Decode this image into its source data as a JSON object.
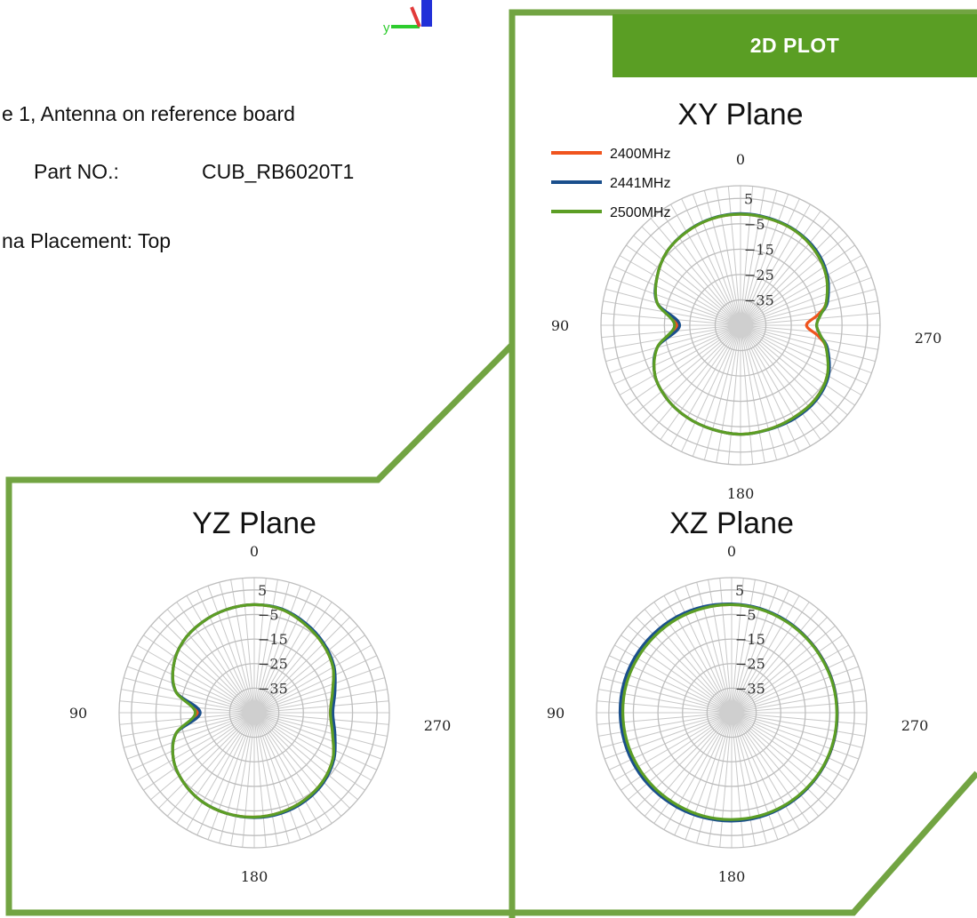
{
  "info": {
    "line1": "e 1, Antenna on reference board",
    "part_label": "Part NO.:",
    "part_value": "CUB_RB6020T1",
    "placement": "na Placement:  Top"
  },
  "axis_label": "y",
  "banner": {
    "label": "2D PLOT",
    "color": "#5a9e24"
  },
  "frame_color": "#72a442",
  "chart_data": [
    {
      "type": "polar-line",
      "title": "XY Plane",
      "angle_labels": [
        "0",
        "90",
        "180",
        "270"
      ],
      "angle_direction": "counterclockwise",
      "r_ticks": [
        -35,
        -25,
        -15,
        -5,
        5
      ],
      "r_range": [
        -45,
        10
      ],
      "legend": true,
      "series": [
        {
          "name": "2400MHz",
          "color": "#f0541e",
          "angles": [
            0,
            15,
            30,
            45,
            60,
            75,
            90,
            105,
            120,
            135,
            150,
            165,
            180,
            195,
            210,
            225,
            240,
            255,
            262,
            270,
            278,
            285,
            300,
            315,
            330,
            345,
            360
          ],
          "values": [
            -1.2,
            -1.5,
            -2.5,
            -4,
            -7,
            -11,
            -20,
            -11,
            -6,
            -4,
            -3,
            -2.5,
            -2,
            -2.5,
            -3,
            -3.5,
            -5.5,
            -10,
            -14,
            -19,
            -14,
            -10,
            -6,
            -3.5,
            -2,
            -1.5,
            -1.2
          ]
        },
        {
          "name": "2441MHz",
          "color": "#1a4f8c",
          "angles": [
            0,
            15,
            30,
            45,
            60,
            75,
            90,
            105,
            120,
            135,
            150,
            165,
            180,
            195,
            210,
            225,
            240,
            255,
            262,
            270,
            278,
            285,
            300,
            315,
            330,
            345,
            360
          ],
          "values": [
            -1,
            -1.4,
            -2.4,
            -4,
            -7,
            -11,
            -21,
            -11,
            -6,
            -4,
            -3,
            -2.5,
            -2,
            -2.4,
            -2.5,
            -3,
            -5,
            -9.5,
            -13,
            -15,
            -13,
            -9.5,
            -5.5,
            -3,
            -1.8,
            -1.3,
            -1
          ]
        },
        {
          "name": "2500MHz",
          "color": "#5c9e25",
          "angles": [
            0,
            15,
            30,
            45,
            60,
            75,
            90,
            105,
            120,
            135,
            150,
            165,
            180,
            195,
            210,
            225,
            240,
            255,
            262,
            270,
            278,
            285,
            300,
            315,
            330,
            345,
            360
          ],
          "values": [
            -1.2,
            -1.5,
            -2.5,
            -4,
            -7,
            -11,
            -19,
            -11,
            -6,
            -4,
            -3,
            -2.5,
            -2,
            -2.5,
            -3,
            -3.5,
            -5.5,
            -10,
            -13,
            -15,
            -13,
            -10,
            -6,
            -3.5,
            -2,
            -1.5,
            -1.2
          ]
        }
      ]
    },
    {
      "type": "polar-line",
      "title": "YZ Plane",
      "angle_labels": [
        "0",
        "90",
        "180",
        "270"
      ],
      "angle_direction": "counterclockwise",
      "r_ticks": [
        -35,
        -25,
        -15,
        -5,
        5
      ],
      "r_range": [
        -45,
        10
      ],
      "legend": false,
      "series": [
        {
          "name": "2400MHz",
          "color": "#f0541e",
          "angles": [
            0,
            15,
            30,
            45,
            60,
            75,
            90,
            105,
            120,
            135,
            150,
            165,
            180,
            195,
            210,
            225,
            240,
            255,
            270,
            285,
            300,
            315,
            330,
            345,
            360
          ],
          "values": [
            -1,
            -1.5,
            -2.5,
            -4,
            -7,
            -12,
            -22,
            -12,
            -7,
            -4.5,
            -3,
            -2.5,
            -2.5,
            -3,
            -4,
            -5.5,
            -8,
            -12,
            -14,
            -12,
            -8,
            -5.5,
            -3.5,
            -1.5,
            -1
          ]
        },
        {
          "name": "2441MHz",
          "color": "#1a4f8c",
          "angles": [
            0,
            15,
            30,
            45,
            60,
            75,
            90,
            105,
            120,
            135,
            150,
            165,
            180,
            195,
            210,
            225,
            240,
            255,
            270,
            285,
            300,
            315,
            330,
            345,
            360
          ],
          "values": [
            -1,
            -1.5,
            -2.5,
            -4,
            -7,
            -12,
            -23,
            -12,
            -7,
            -4.5,
            -3,
            -2.5,
            -2.3,
            -2.6,
            -3.5,
            -5,
            -7.5,
            -11,
            -13,
            -11,
            -7.5,
            -5,
            -3,
            -1.3,
            -1
          ]
        },
        {
          "name": "2500MHz",
          "color": "#5c9e25",
          "angles": [
            0,
            15,
            30,
            45,
            60,
            75,
            90,
            105,
            120,
            135,
            150,
            165,
            180,
            195,
            210,
            225,
            240,
            255,
            270,
            285,
            300,
            315,
            330,
            345,
            360
          ],
          "values": [
            -1,
            -1.5,
            -2.5,
            -4,
            -7,
            -12,
            -21,
            -12,
            -7,
            -4.5,
            -3,
            -2.5,
            -2.5,
            -3,
            -4,
            -5.5,
            -8,
            -12,
            -14,
            -12,
            -8,
            -5.5,
            -3.5,
            -1.5,
            -1
          ]
        }
      ]
    },
    {
      "type": "polar-line",
      "title": "XZ Plane",
      "angle_labels": [
        "0",
        "90",
        "180",
        "270"
      ],
      "angle_direction": "counterclockwise",
      "r_ticks": [
        -35,
        -25,
        -15,
        -5,
        5
      ],
      "r_range": [
        -45,
        10
      ],
      "legend": false,
      "series": [
        {
          "name": "2400MHz",
          "color": "#f0541e",
          "angles": [
            0,
            15,
            30,
            45,
            60,
            75,
            90,
            105,
            120,
            135,
            150,
            165,
            180,
            195,
            210,
            225,
            240,
            255,
            270,
            285,
            300,
            315,
            330,
            345,
            360
          ],
          "values": [
            -1,
            -0.8,
            -0.7,
            -0.6,
            -0.5,
            -0.4,
            -0.5,
            -0.6,
            -0.8,
            -1,
            -1.2,
            -1.2,
            -1.3,
            -1.3,
            -1.4,
            -1.5,
            -1.6,
            -1.8,
            -2,
            -2,
            -2,
            -1.8,
            -1.5,
            -1.2,
            -1
          ]
        },
        {
          "name": "2441MHz",
          "color": "#1a4f8c",
          "angles": [
            0,
            15,
            30,
            45,
            60,
            75,
            90,
            105,
            120,
            135,
            150,
            165,
            180,
            195,
            210,
            225,
            240,
            255,
            270,
            285,
            300,
            315,
            330,
            345,
            360
          ],
          "values": [
            -0.7,
            -0.3,
            0,
            0.2,
            0.4,
            0.5,
            0.4,
            0.2,
            0,
            -0.3,
            -0.6,
            -0.8,
            -0.9,
            -1,
            -1.2,
            -1.4,
            -1.6,
            -1.8,
            -2,
            -2,
            -2,
            -1.8,
            -1.4,
            -1,
            -0.7
          ]
        },
        {
          "name": "2500MHz",
          "color": "#5c9e25",
          "angles": [
            0,
            15,
            30,
            45,
            60,
            75,
            90,
            105,
            120,
            135,
            150,
            165,
            180,
            195,
            210,
            225,
            240,
            255,
            270,
            285,
            300,
            315,
            330,
            345,
            360
          ],
          "values": [
            -1,
            -0.9,
            -0.8,
            -0.8,
            -0.7,
            -0.6,
            -0.7,
            -0.8,
            -1,
            -1.2,
            -1.4,
            -1.4,
            -1.5,
            -1.5,
            -1.6,
            -1.7,
            -1.8,
            -2,
            -2.2,
            -2.2,
            -2.2,
            -2,
            -1.7,
            -1.3,
            -1
          ]
        }
      ]
    }
  ]
}
